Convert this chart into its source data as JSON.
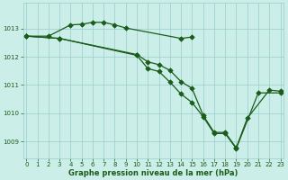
{
  "bg_color": "#cceee8",
  "line_color": "#1a5c1a",
  "grid_color": "#99cccc",
  "xlabel": "Graphe pression niveau de la mer (hPa)",
  "xlabel_color": "#1a5c1a",
  "ylim": [
    1008.4,
    1013.9
  ],
  "xlim": [
    -0.3,
    23.3
  ],
  "yticks": [
    1009,
    1010,
    1011,
    1012,
    1013
  ],
  "xticks": [
    0,
    1,
    2,
    3,
    4,
    5,
    6,
    7,
    8,
    9,
    10,
    11,
    12,
    13,
    14,
    15,
    16,
    17,
    18,
    19,
    20,
    21,
    22,
    23
  ],
  "s1x": [
    0,
    2,
    4,
    5,
    6,
    7,
    8,
    9,
    14,
    15
  ],
  "s1y": [
    1012.73,
    1012.73,
    1013.13,
    1013.15,
    1013.22,
    1013.22,
    1013.13,
    1013.02,
    1012.65,
    1012.7
  ],
  "s2x": [
    0,
    3,
    10,
    11,
    12,
    13,
    14,
    15,
    16,
    17,
    18,
    19,
    20,
    22,
    23
  ],
  "s2y": [
    1012.73,
    1012.65,
    1012.08,
    1011.82,
    1011.72,
    1011.52,
    1011.12,
    1010.88,
    1009.93,
    1009.32,
    1009.32,
    1008.77,
    1009.82,
    1010.82,
    1010.78
  ],
  "s3x": [
    0,
    3,
    10,
    11,
    12,
    13,
    14,
    15,
    16,
    17,
    18,
    19,
    21,
    23
  ],
  "s3y": [
    1012.73,
    1012.65,
    1012.05,
    1011.58,
    1011.48,
    1011.1,
    1010.68,
    1010.38,
    1009.88,
    1009.28,
    1009.28,
    1008.75,
    1010.72,
    1010.72
  ],
  "marker_size": 2.8,
  "linewidth": 0.9,
  "tick_labelsize": 5.0,
  "xlabel_fontsize": 6.0
}
